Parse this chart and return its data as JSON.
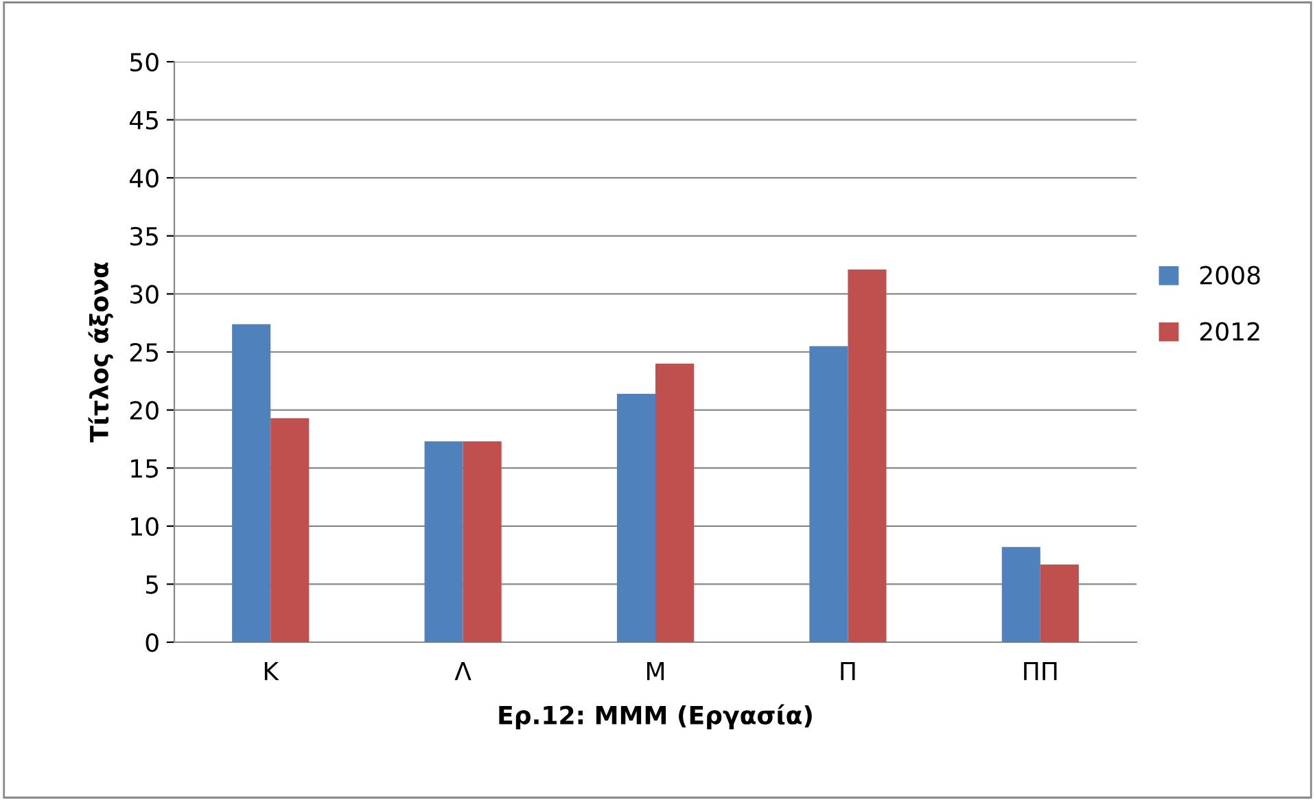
{
  "chart_data": {
    "type": "bar",
    "xlabel": "Ερ.12: ΜΜΜ (Εργασία)",
    "ylabel": "Τίτλος άξονα",
    "categories": [
      "Κ",
      "Λ",
      "Μ",
      "Π",
      "ΠΠ"
    ],
    "series": [
      {
        "name": "2008",
        "color": "#4f81bd",
        "values": [
          27.4,
          17.3,
          21.4,
          25.5,
          8.2
        ]
      },
      {
        "name": "2012",
        "color": "#c0504d",
        "values": [
          19.3,
          17.3,
          24.0,
          32.1,
          6.7
        ]
      }
    ],
    "ylim": [
      0,
      50
    ],
    "yticks": [
      0,
      5,
      10,
      15,
      20,
      25,
      30,
      35,
      40,
      45,
      50
    ],
    "grid": "y",
    "legend": "right"
  }
}
